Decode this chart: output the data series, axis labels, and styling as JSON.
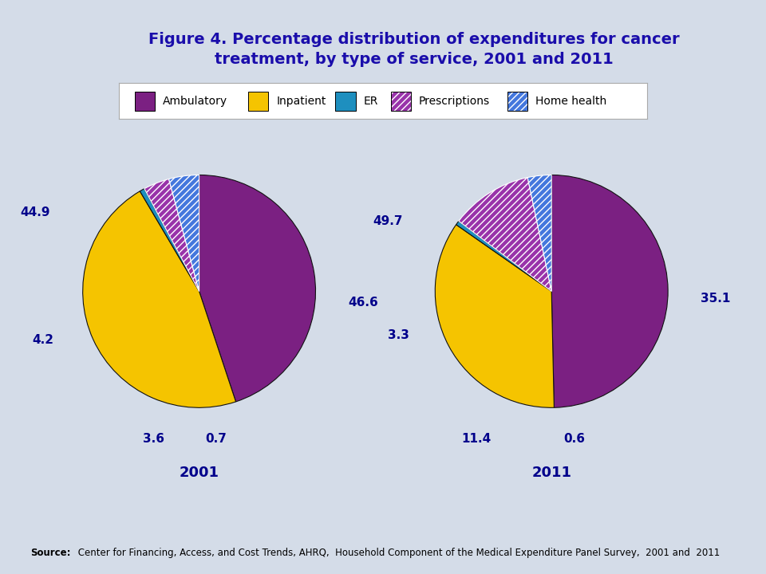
{
  "title_line1": "Figure 4. Percentage distribution of expenditures for cancer",
  "title_line2": "treatment, by type of service, 2001 and 2011",
  "title_color": "#1a0dab",
  "bg_color": "#d4dce8",
  "white": "#ffffff",
  "legend_labels": [
    "Ambulatory",
    "Inpatient",
    "ER",
    "Prescriptions",
    "Home health"
  ],
  "ambulatory_color": "#7b2082",
  "inpatient_color": "#f5c400",
  "er_color": "#1e8fbf",
  "prescriptions_color": "#9933aa",
  "homehealth_color": "#4477dd",
  "values_2001": [
    44.9,
    46.6,
    0.7,
    3.6,
    4.2
  ],
  "values_2011": [
    49.7,
    35.1,
    0.6,
    11.4,
    3.3
  ],
  "year_2001": "2001",
  "year_2011": "2011",
  "label_color": "#00008b",
  "label_fontsize": 11,
  "year_fontsize": 13,
  "source_bold": "Source:",
  "source_rest": " Center for Financing, Access, and Cost Trends, AHRQ,  Household Component of the Medical Expenditure Panel Survey,  2001 and  2011",
  "source_fontsize": 8.5,
  "title_fontsize": 14,
  "legend_fontsize": 10,
  "sep_color": "#aaaaaa"
}
